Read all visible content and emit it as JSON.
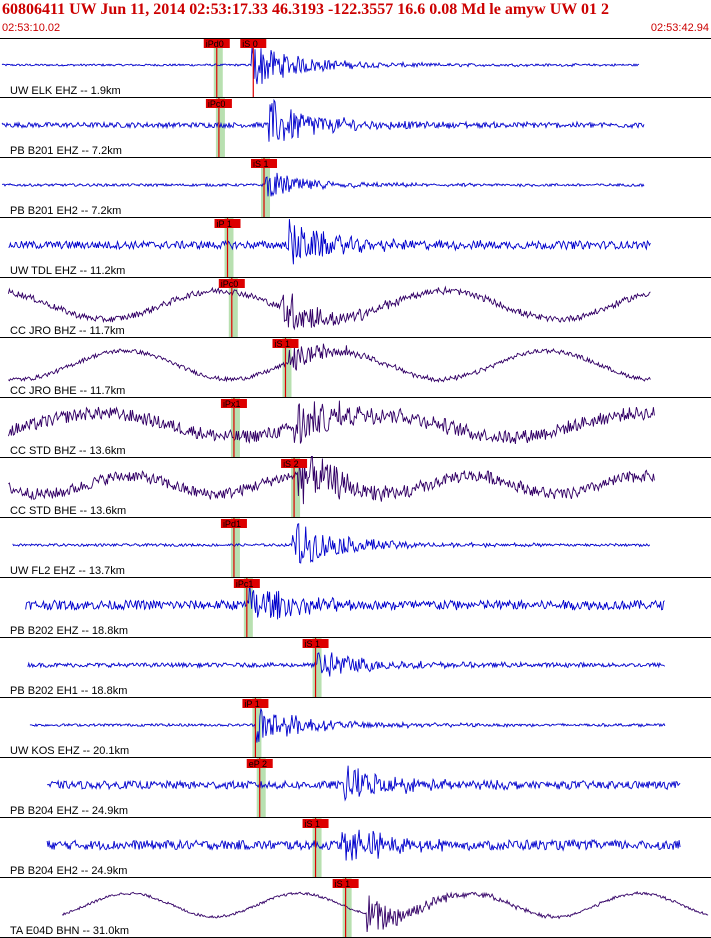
{
  "header": {
    "event_line": "60806411 UW Jun 11, 2014 02:53:17.33   46.3193 -122.3557 16.6 0.08 Md le amyw UW 01   2",
    "start_time": "02:53:10.02",
    "end_time": "02:53:42.94"
  },
  "colors": {
    "header_text": "#cc0000",
    "trace_blue": "#0000cc",
    "trace_purple": "#330066",
    "pick_marker": "#dd0000",
    "pick_band": "#b8e0b0",
    "divider": "#000000"
  },
  "chart_data": {
    "type": "line",
    "title": "",
    "xlabel": "",
    "ylabel": "",
    "x_unit": "seconds",
    "xlim": [
      0,
      32.92
    ],
    "traces": [
      {
        "name": "UW ELK EHZ -- 1.9km",
        "color": "trace_blue",
        "trace_start": 0.0,
        "trace_end": 29.7,
        "noise": 0.04,
        "long_period": 0.0,
        "onset": 11.6,
        "amplitude": 0.85,
        "picks": [
          {
            "label": "iPd0",
            "time": 10.0,
            "band": 0.25
          },
          {
            "label": "iS 0",
            "time": 11.7,
            "band": 0.0
          }
        ]
      },
      {
        "name": "PB B201 EHZ -- 7.2km",
        "color": "trace_blue",
        "trace_start": 0.0,
        "trace_end": 29.9,
        "noise": 0.1,
        "long_period": 0.0,
        "onset": 12.4,
        "amplitude": 0.9,
        "picks": [
          {
            "label": "iPc0",
            "time": 10.1,
            "band": 0.25
          }
        ]
      },
      {
        "name": "PB B201 EH2 -- 7.2km",
        "color": "trace_blue",
        "trace_start": 0.0,
        "trace_end": 29.9,
        "noise": 0.05,
        "long_period": 0.0,
        "onset": 12.2,
        "amplitude": 0.5,
        "picks": [
          {
            "label": "iS 1",
            "time": 12.2,
            "band": 0.25
          }
        ]
      },
      {
        "name": "UW TDL EHZ -- 11.2km",
        "color": "trace_blue",
        "trace_start": 0.3,
        "trace_end": 30.2,
        "noise": 0.15,
        "long_period": 0.0,
        "onset": 13.3,
        "amplitude": 0.85,
        "picks": [
          {
            "label": "iP 1",
            "time": 10.5,
            "band": 0.25
          }
        ]
      },
      {
        "name": "CC JRO BHZ -- 11.7km",
        "color": "trace_purple",
        "trace_start": 0.3,
        "trace_end": 30.2,
        "noise": 0.12,
        "long_period": 0.55,
        "onset": 13.0,
        "amplitude": 0.8,
        "picks": [
          {
            "label": "iPc0",
            "time": 10.7,
            "band": 0.25
          }
        ]
      },
      {
        "name": "CC JRO BHE -- 11.7km",
        "color": "trace_purple",
        "trace_start": 0.3,
        "trace_end": 30.2,
        "noise": 0.08,
        "long_period": 0.55,
        "onset": 13.3,
        "amplitude": 0.5,
        "picks": [
          {
            "label": "iS 1",
            "time": 13.2,
            "band": 0.25
          }
        ]
      },
      {
        "name": "CC STD BHZ -- 13.6km",
        "color": "trace_purple",
        "trace_start": 0.3,
        "trace_end": 30.4,
        "noise": 0.25,
        "long_period": 0.45,
        "onset": 13.5,
        "amplitude": 0.95,
        "picks": [
          {
            "label": "iPx1",
            "time": 10.8,
            "band": 0.25
          }
        ]
      },
      {
        "name": "CC STD BHE -- 13.6km",
        "color": "trace_purple",
        "trace_start": 0.3,
        "trace_end": 30.4,
        "noise": 0.22,
        "long_period": 0.35,
        "onset": 13.8,
        "amplitude": 0.95,
        "picks": [
          {
            "label": "iS 2",
            "time": 13.6,
            "band": 0.25
          }
        ]
      },
      {
        "name": "UW FL2 EHZ -- 13.7km",
        "color": "trace_blue",
        "trace_start": 0.5,
        "trace_end": 30.2,
        "noise": 0.05,
        "long_period": 0.0,
        "onset": 13.5,
        "amplitude": 0.9,
        "picks": [
          {
            "label": "iPd1",
            "time": 10.8,
            "band": 0.25
          }
        ]
      },
      {
        "name": "PB B202 EHZ -- 18.8km",
        "color": "trace_blue",
        "trace_start": 1.1,
        "trace_end": 30.9,
        "noise": 0.18,
        "long_period": 0.0,
        "onset": 11.5,
        "amplitude": 0.7,
        "picks": [
          {
            "label": "iPc1",
            "time": 11.4,
            "band": 0.25
          }
        ]
      },
      {
        "name": "PB B202 EH1 -- 18.8km",
        "color": "trace_blue",
        "trace_start": 1.2,
        "trace_end": 30.9,
        "noise": 0.08,
        "long_period": 0.0,
        "onset": 14.7,
        "amplitude": 0.6,
        "picks": [
          {
            "label": "iS 1",
            "time": 14.6,
            "band": 0.25
          }
        ]
      },
      {
        "name": "UW KOS EHZ -- 20.1km",
        "color": "trace_blue",
        "trace_start": 1.3,
        "trace_end": 30.9,
        "noise": 0.05,
        "long_period": 0.0,
        "onset": 11.8,
        "amplitude": 0.75,
        "picks": [
          {
            "label": "iP 1",
            "time": 11.8,
            "band": 0.25
          }
        ]
      },
      {
        "name": "PB B204 EHZ -- 24.9km",
        "color": "trace_blue",
        "trace_start": 2.1,
        "trace_end": 31.6,
        "noise": 0.15,
        "long_period": 0.0,
        "onset": 15.9,
        "amplitude": 0.7,
        "picks": [
          {
            "label": "eP 2",
            "time": 12.0,
            "band": 0.25
          }
        ]
      },
      {
        "name": "PB B204 EH2 -- 24.9km",
        "color": "trace_blue",
        "trace_start": 2.1,
        "trace_end": 31.6,
        "noise": 0.18,
        "long_period": 0.0,
        "onset": 15.8,
        "amplitude": 0.75,
        "picks": [
          {
            "label": "iS 1",
            "time": 14.6,
            "band": 0.25
          }
        ]
      },
      {
        "name": "TA E04D BHN -- 31.0km",
        "color": "trace_purple",
        "trace_start": 2.8,
        "trace_end": 32.9,
        "noise": 0.05,
        "long_period": 0.45,
        "onset": 17.0,
        "amplitude": 0.7,
        "picks": [
          {
            "label": "iS 1",
            "time": 16.0,
            "band": 0.25
          }
        ]
      }
    ]
  }
}
